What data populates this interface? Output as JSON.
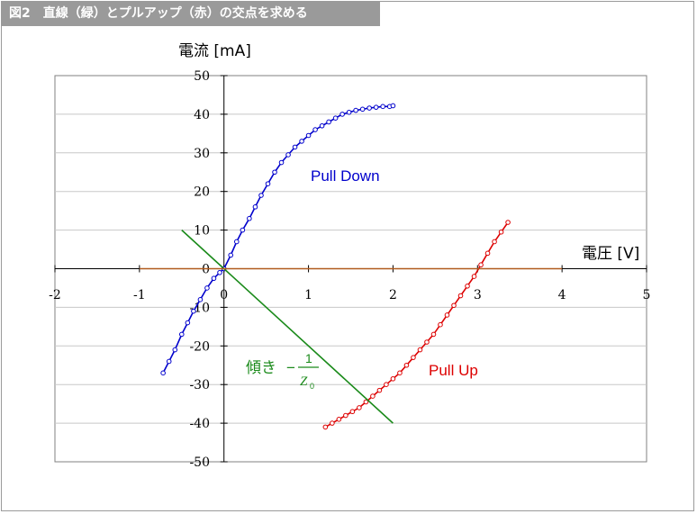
{
  "figure": {
    "title": "図2　直線（緑）とプルアップ（赤）の交点を求める"
  },
  "chart_data": {
    "type": "line",
    "xlabel": "電圧 [V]",
    "ylabel": "電流 [mA]",
    "xlim": [
      -2,
      5
    ],
    "ylim": [
      -50,
      50
    ],
    "xticks": [
      -2,
      -1,
      0,
      1,
      2,
      3,
      4,
      5
    ],
    "yticks": [
      -50,
      -40,
      -30,
      -20,
      -10,
      0,
      10,
      20,
      30,
      40,
      50
    ],
    "grid": true,
    "legend": "none",
    "annotations": {
      "pull_down": "Pull Down",
      "pull_up": "Pull Up",
      "slope_prefix": "傾き",
      "slope_minus": "−",
      "slope_num": "1",
      "slope_den": "Z",
      "slope_den_sub": "0"
    },
    "series": [
      {
        "name": "Pull Down",
        "color": "#0000cc",
        "marker": "circle",
        "x": [
          -0.72,
          -0.65,
          -0.58,
          -0.5,
          -0.43,
          -0.36,
          -0.28,
          -0.2,
          -0.12,
          -0.05,
          0,
          0.08,
          0.15,
          0.22,
          0.3,
          0.37,
          0.44,
          0.52,
          0.6,
          0.68,
          0.76,
          0.84,
          0.92,
          1.0,
          1.08,
          1.16,
          1.24,
          1.32,
          1.4,
          1.48,
          1.56,
          1.64,
          1.72,
          1.8,
          1.88,
          1.96,
          2.0
        ],
        "y": [
          -27,
          -24,
          -21,
          -17,
          -14,
          -11,
          -8,
          -5,
          -2.5,
          -1,
          0,
          3.5,
          7,
          10,
          13,
          16,
          19,
          22,
          25,
          27.5,
          29.5,
          31.5,
          33,
          34.5,
          36,
          37,
          38,
          39,
          40,
          40.5,
          41,
          41.3,
          41.6,
          41.8,
          42,
          42,
          42.2
        ]
      },
      {
        "name": "Pull Up",
        "color": "#dd0000",
        "marker": "circle",
        "x": [
          1.2,
          1.28,
          1.36,
          1.44,
          1.52,
          1.6,
          1.68,
          1.76,
          1.84,
          1.92,
          2.0,
          2.08,
          2.16,
          2.24,
          2.32,
          2.4,
          2.48,
          2.56,
          2.64,
          2.72,
          2.8,
          2.88,
          2.96,
          3.04,
          3.12,
          3.2,
          3.28,
          3.36
        ],
        "y": [
          -41,
          -40,
          -39,
          -38,
          -37,
          -36,
          -34.5,
          -33,
          -31.5,
          -30,
          -28.5,
          -27,
          -25,
          -23,
          -21,
          -19,
          -17,
          -14.5,
          -12,
          -9.5,
          -7,
          -4.5,
          -2,
          1,
          4,
          7,
          9.5,
          12
        ]
      },
      {
        "color": "#1a8a1a",
        "marker": "none",
        "x": [
          -0.5,
          2.0
        ],
        "y": [
          10,
          -40
        ]
      },
      {
        "color": "#b05a1e",
        "marker": "none",
        "x": [
          -1.0,
          4.0
        ],
        "y": [
          0,
          0
        ]
      }
    ]
  }
}
